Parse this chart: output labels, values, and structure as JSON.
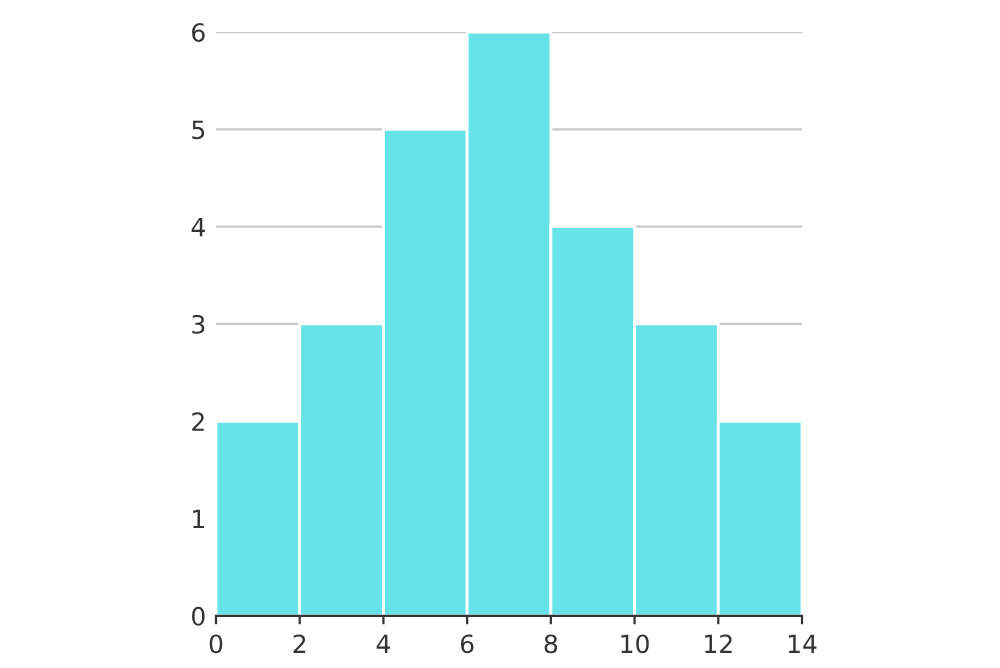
{
  "chart_data": {
    "type": "histogram",
    "bins": [
      0,
      2,
      4,
      6,
      8,
      10,
      12,
      14
    ],
    "values": [
      2,
      3,
      5,
      6,
      4,
      3,
      2
    ],
    "color": "#66e3e8",
    "xlim": [
      0,
      14
    ],
    "xticks": [
      0,
      2,
      4,
      6,
      8,
      10,
      12,
      14
    ],
    "ylim": [
      0,
      6
    ],
    "yticks": [
      0,
      1,
      2,
      3,
      4,
      5,
      6
    ],
    "grid": "y",
    "legend": false
  }
}
